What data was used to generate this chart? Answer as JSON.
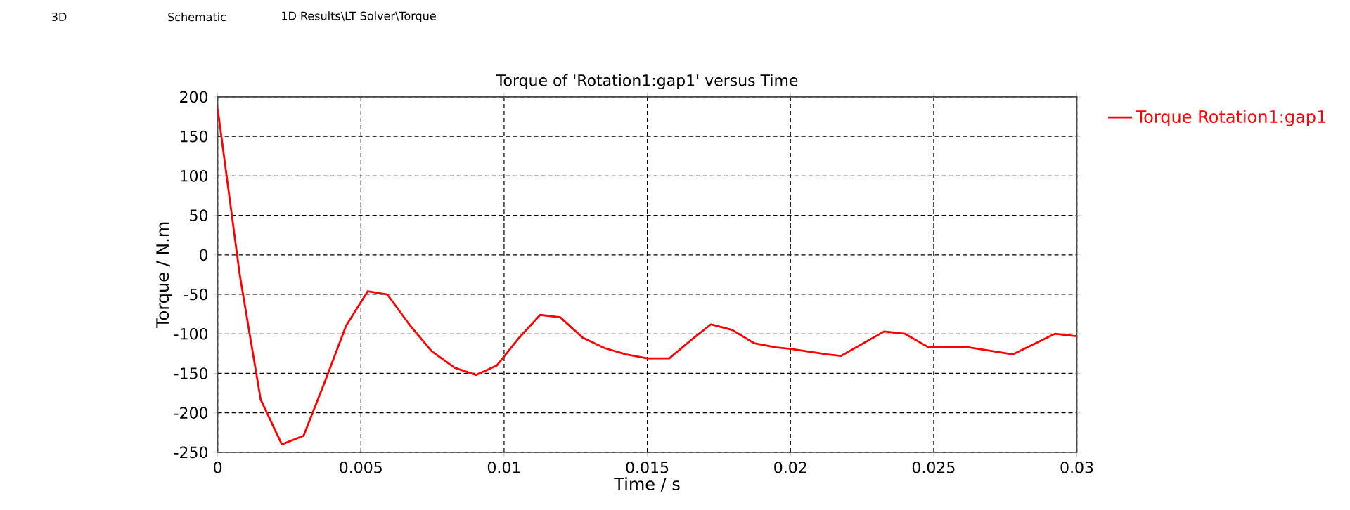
{
  "chart_data": {
    "type": "line",
    "title": "Torque of 'Rotation1:gap1' versus Time",
    "xlabel": "Time / s",
    "ylabel": "Torque / N.m",
    "x": [
      0,
      0.00077,
      0.0015,
      0.00224,
      0.003,
      0.00376,
      0.00448,
      0.00524,
      0.00592,
      0.00673,
      0.00747,
      0.00828,
      0.00902,
      0.00975,
      0.0105,
      0.01126,
      0.01196,
      0.01275,
      0.01351,
      0.01425,
      0.015,
      0.01577,
      0.01649,
      0.01722,
      0.01796,
      0.01874,
      0.01948,
      0.02,
      0.02127,
      0.02176,
      0.02327,
      0.024,
      0.02482,
      0.02621,
      0.02776,
      0.02923,
      0.03
    ],
    "series": [
      {
        "name": "Torque Rotation1:gap1",
        "color": "#ff0000",
        "values": [
          185,
          -25,
          -183,
          -240,
          -229,
          -159,
          -90,
          -46,
          -50,
          -90,
          -122,
          -143,
          -152,
          -140,
          -106,
          -76,
          -79,
          -105,
          -118,
          -126,
          -131,
          -131,
          -109,
          -88,
          -95,
          -112,
          -117,
          -119,
          -126,
          -128,
          -97,
          -100,
          -117,
          -117,
          -126,
          -100,
          -103
        ]
      }
    ],
    "xlim": [
      0,
      0.03
    ],
    "ylim": [
      -250,
      200
    ],
    "xticks": [
      0,
      0.005,
      0.01,
      0.015,
      0.02,
      0.025,
      0.03
    ],
    "yticks": [
      -250,
      -200,
      -150,
      -100,
      -50,
      0,
      50,
      100,
      150,
      200
    ],
    "grid": true,
    "legend": "top right",
    "line_style": "solid",
    "marker": "none",
    "annotations": [
      "3D",
      "Schematic",
      "1D Results\\LT Solver\\Torque"
    ]
  }
}
